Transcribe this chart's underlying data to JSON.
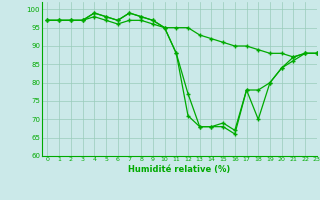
{
  "title": "",
  "xlabel": "Humidité relative (%)",
  "ylabel": "",
  "bg_color": "#cbe9e9",
  "grid_color": "#99ccbb",
  "line_color": "#00aa00",
  "marker": "+",
  "xlim": [
    -0.5,
    23
  ],
  "ylim": [
    60,
    102
  ],
  "yticks": [
    60,
    65,
    70,
    75,
    80,
    85,
    90,
    95,
    100
  ],
  "xticks": [
    0,
    1,
    2,
    3,
    4,
    5,
    6,
    7,
    8,
    9,
    10,
    11,
    12,
    13,
    14,
    15,
    16,
    17,
    18,
    19,
    20,
    21,
    22,
    23
  ],
  "series": [
    [
      97,
      97,
      97,
      97,
      99,
      98,
      97,
      99,
      98,
      97,
      95,
      88,
      77,
      68,
      68,
      68,
      66,
      78,
      78,
      80,
      84,
      86,
      88,
      88
    ],
    [
      97,
      97,
      97,
      97,
      98,
      97,
      96,
      97,
      97,
      96,
      95,
      88,
      71,
      68,
      68,
      69,
      67,
      78,
      70,
      80,
      84,
      87,
      88,
      88
    ],
    [
      97,
      97,
      97,
      97,
      99,
      98,
      97,
      99,
      98,
      97,
      95,
      95,
      95,
      93,
      92,
      91,
      90,
      90,
      89,
      88,
      88,
      87,
      88,
      88
    ]
  ]
}
